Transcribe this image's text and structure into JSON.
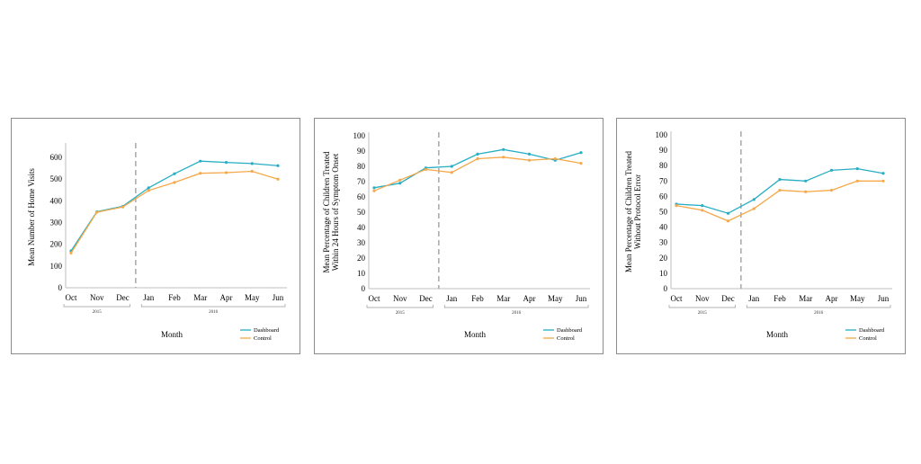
{
  "chart_data": [
    {
      "type": "line",
      "categories": [
        "Oct",
        "Nov",
        "Dec",
        "Jan",
        "Feb",
        "Mar",
        "Apr",
        "May",
        "Jun"
      ],
      "series": [
        {
          "name": "Dashboard",
          "color": "#27aec4",
          "values": [
            170,
            350,
            375,
            460,
            525,
            583,
            577,
            572,
            562
          ]
        },
        {
          "name": "Control",
          "color": "#f6a84a",
          "values": [
            160,
            348,
            372,
            448,
            485,
            527,
            530,
            536,
            500
          ]
        }
      ],
      "yticks": [
        0,
        100,
        200,
        300,
        400,
        500,
        600
      ],
      "ylim": [
        0,
        650
      ],
      "ylabel_lines": [
        "Mean Number of Home Visits"
      ],
      "xlabel": "Month",
      "years": [
        "2015",
        "2016"
      ],
      "divider_after": "Dec"
    },
    {
      "type": "line",
      "categories": [
        "Oct",
        "Nov",
        "Dec",
        "Jan",
        "Feb",
        "Mar",
        "Apr",
        "May",
        "Jun"
      ],
      "series": [
        {
          "name": "Dashboard",
          "color": "#27aec4",
          "values": [
            66,
            69,
            79,
            80,
            88,
            91,
            88,
            84,
            89
          ]
        },
        {
          "name": "Control",
          "color": "#f6a84a",
          "values": [
            64,
            71,
            78,
            76,
            85,
            86,
            84,
            85,
            82
          ]
        }
      ],
      "yticks": [
        0,
        10,
        20,
        30,
        40,
        50,
        60,
        70,
        80,
        90,
        100
      ],
      "ylim": [
        0,
        100
      ],
      "ylabel_lines": [
        "Mean Percentage of Children Treated",
        "Within 24 Hours of Symptom Onset"
      ],
      "xlabel": "Month",
      "years": [
        "2015",
        "2016"
      ],
      "divider_after": "Dec"
    },
    {
      "type": "line",
      "categories": [
        "Oct",
        "Nov",
        "Dec",
        "Jan",
        "Feb",
        "Mar",
        "Apr",
        "May",
        "Jun"
      ],
      "series": [
        {
          "name": "Dashboard",
          "color": "#27aec4",
          "values": [
            55,
            54,
            49,
            58,
            71,
            70,
            77,
            78,
            75
          ]
        },
        {
          "name": "Control",
          "color": "#f6a84a",
          "values": [
            54,
            51,
            44,
            52,
            64,
            63,
            64,
            70,
            70
          ]
        }
      ],
      "yticks": [
        0,
        10,
        20,
        30,
        40,
        50,
        60,
        70,
        80,
        90,
        100
      ],
      "ylim": [
        0,
        100
      ],
      "ylabel_lines": [
        "Mean Percentage of Children Treated",
        "Without Protocol Error"
      ],
      "xlabel": "Month",
      "years": [
        "2015",
        "2016"
      ],
      "divider_after": "Dec"
    }
  ]
}
